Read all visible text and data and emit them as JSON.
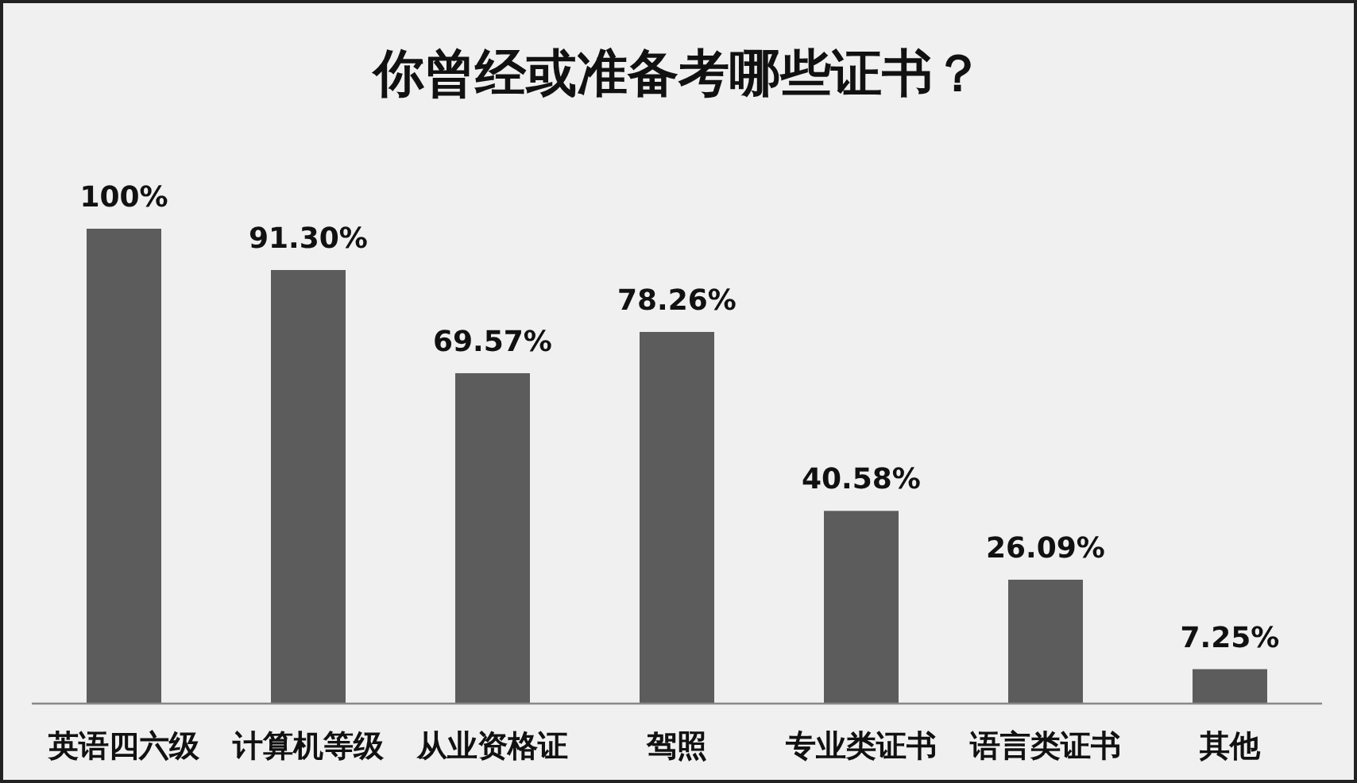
{
  "chart_data": {
    "type": "bar",
    "title": "你曾经或准备考哪些证书？",
    "categories": [
      "英语四六级",
      "计算机等级",
      "从业资格证",
      "驾照",
      "专业类证书",
      "语言类证书",
      "其他"
    ],
    "values": [
      100,
      91.3,
      69.57,
      78.26,
      40.58,
      26.09,
      7.25
    ],
    "value_labels": [
      "100%",
      "91.30%",
      "69.57%",
      "78.26%",
      "40.58%",
      "26.09%",
      "7.25%"
    ],
    "color": "#5c5c5c"
  }
}
